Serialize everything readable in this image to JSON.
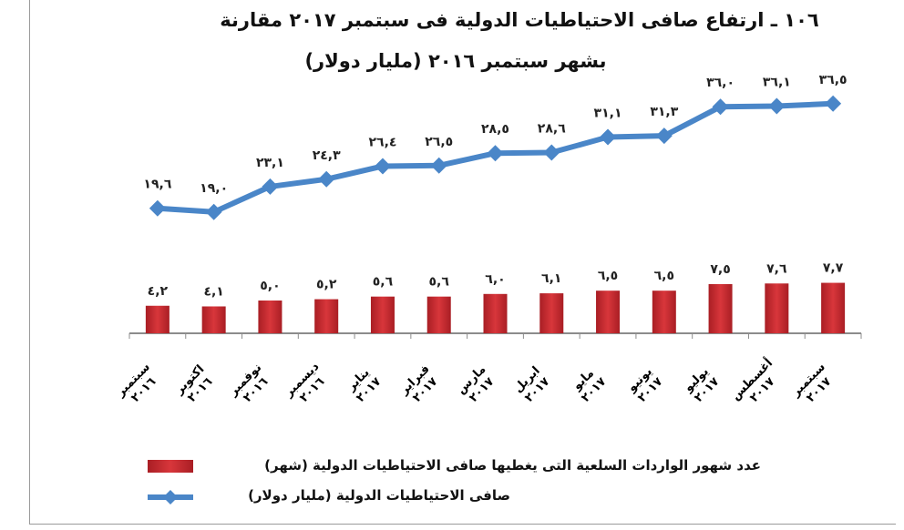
{
  "chart_data": {
    "type": "bar+line",
    "title": "١٠٦ ـ ارتفاع صافى الاحتياطيات الدولية فى سبتمبر ٢٠١٧ مقارنة",
    "subtitle": "بشهر سبتمبر ٢٠١٦ (مليار دولار)",
    "categories": [
      [
        "سبتمبر",
        "٢٠١٦"
      ],
      [
        "اكتوبر",
        "٢٠١٦"
      ],
      [
        "نوفمبر",
        "٢٠١٦"
      ],
      [
        "ديسمبر",
        "٢٠١٦"
      ],
      [
        "يناير",
        "٢٠١٧"
      ],
      [
        "فبراير",
        "٢٠١٧"
      ],
      [
        "مارس",
        "٢٠١٧"
      ],
      [
        "ابريل",
        "٢٠١٧"
      ],
      [
        "مايو",
        "٢٠١٧"
      ],
      [
        "يونيو",
        "٢٠١٧"
      ],
      [
        "يوليو",
        "٢٠١٧"
      ],
      [
        "أغسطس",
        "٢٠١٧"
      ],
      [
        "سبتمبر",
        "٢٠١٧"
      ]
    ],
    "series": [
      {
        "name": "عدد شهور الواردات السلعية التى يغطيها صافى الاحتياطيات الدولية (شهر)",
        "type": "bar",
        "color": "#c0282d",
        "values": [
          4.2,
          4.1,
          5.0,
          5.2,
          5.6,
          5.6,
          6.0,
          6.1,
          6.5,
          6.5,
          7.5,
          7.6,
          7.7
        ]
      },
      {
        "name": "صافى الاحتياطيات الدولية (مليار دولار)",
        "type": "line",
        "color": "#4a86c8",
        "values": [
          19.6,
          19.0,
          23.1,
          24.3,
          26.4,
          26.5,
          28.5,
          28.6,
          31.1,
          31.3,
          36.0,
          36.1,
          36.5
        ]
      }
    ],
    "grid": false,
    "legend": "bottom"
  }
}
